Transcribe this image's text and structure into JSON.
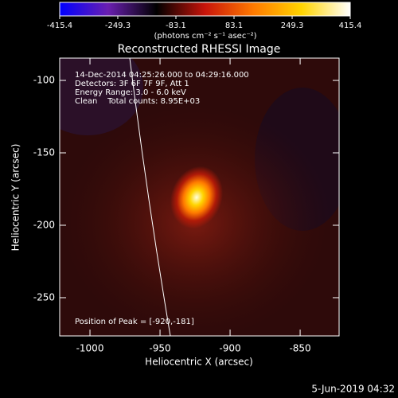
{
  "chart_data": {
    "type": "heatmap",
    "title": "Reconstructed RHESSI Image",
    "x_label": "Heliocentric X (arcsec)",
    "y_label": "Heliocentric Y (arcsec)",
    "xlim": [
      -1021.6,
      -822.2
    ],
    "ylim": [
      -276.4,
      -84.6
    ],
    "xticks": [
      -1000,
      -950,
      -900,
      -850
    ],
    "yticks": [
      -100,
      -150,
      -200,
      -250
    ],
    "colorbar": {
      "label": "(photons cm⁻² s⁻¹ asec⁻²)",
      "lim": [
        -415.4,
        415.4
      ],
      "ticks": [
        -415.4,
        -249.3,
        -83.1,
        83.1,
        249.3,
        415.4
      ],
      "colors": [
        "#0000ff",
        "#6a1fb0",
        "#000000",
        "#c8140a",
        "#ff7a00",
        "#ffd400",
        "#ffffff"
      ]
    },
    "annotations": [
      "14-Dec-2014 04:25:26.000 to 04:29:16.000",
      "Detectors: 3F 6F 7F 9F, Att 1",
      "Energy Range: 3.0 - 6.0 keV",
      "Clean    Total counts: 8.95E+03",
      "Position of Peak = [-920,-181]"
    ],
    "timestamp": "5-Jun-2019 04:32"
  }
}
